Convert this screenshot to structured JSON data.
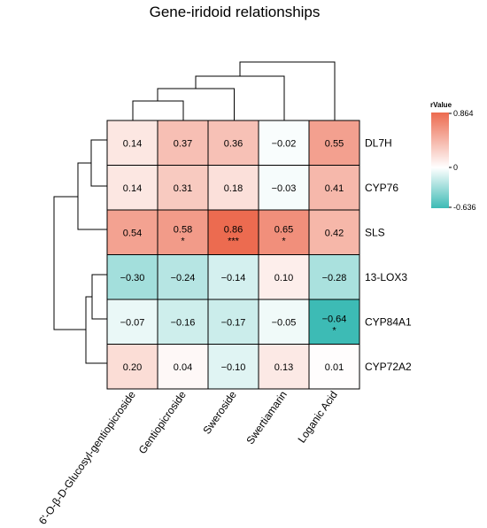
{
  "chart_data": {
    "type": "heatmap",
    "title": "Gene-iridoid relationships",
    "rows": [
      "DL7H",
      "CYP76",
      "SLS",
      "13-LOX3",
      "CYP84A1",
      "CYP72A2"
    ],
    "columns": [
      "6'-O-β-D-Glucosyl-gentiopicroside",
      "Gentiopicroside",
      "Sweroside",
      "Swertiamarin",
      "Loganic Acid"
    ],
    "values": [
      [
        0.14,
        0.37,
        0.36,
        -0.02,
        0.55
      ],
      [
        0.14,
        0.31,
        0.18,
        -0.03,
        0.41
      ],
      [
        0.54,
        0.58,
        0.86,
        0.65,
        0.42
      ],
      [
        -0.3,
        -0.24,
        -0.14,
        0.1,
        -0.28
      ],
      [
        -0.07,
        -0.16,
        -0.17,
        -0.05,
        -0.64
      ],
      [
        0.2,
        0.04,
        -0.1,
        0.13,
        0.01
      ]
    ],
    "labels": [
      [
        "0.14",
        "0.37",
        "0.36",
        "−0.02",
        "0.55"
      ],
      [
        "0.14",
        "0.31",
        "0.18",
        "−0.03",
        "0.41"
      ],
      [
        "0.54",
        "0.58",
        "0.86",
        "0.65",
        "0.42"
      ],
      [
        "−0.30",
        "−0.24",
        "−0.14",
        "0.10",
        "−0.28"
      ],
      [
        "−0.07",
        "−0.16",
        "−0.17",
        "−0.05",
        "−0.64"
      ],
      [
        "0.20",
        "0.04",
        "−0.10",
        "0.13",
        "0.01"
      ]
    ],
    "significance": [
      [
        "",
        "",
        "",
        "",
        ""
      ],
      [
        "",
        "",
        "",
        "",
        ""
      ],
      [
        "",
        "*",
        "***",
        "*",
        ""
      ],
      [
        "",
        "",
        "",
        "",
        ""
      ],
      [
        "",
        "",
        "",
        "",
        "*"
      ],
      [
        "",
        "",
        "",
        "",
        ""
      ]
    ],
    "legend": {
      "title": "rValue",
      "max": 0.864,
      "min": -0.636,
      "tick_labels": [
        "0.864",
        "0",
        "-0.636"
      ]
    },
    "colors": {
      "positive": "#ec6a4f",
      "zero": "#ffffff",
      "negative": "#3dbbb5"
    }
  }
}
